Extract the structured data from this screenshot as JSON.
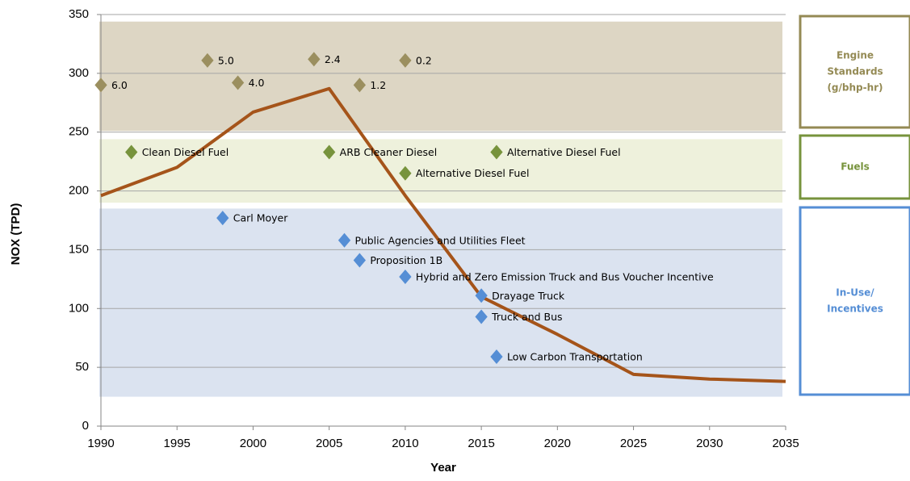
{
  "chart_data": {
    "type": "line",
    "xlabel": "Year",
    "ylabel": "NOX (TPD)",
    "xlim": [
      1990,
      2035
    ],
    "ylim": [
      0,
      350
    ],
    "xticks": [
      1990,
      1995,
      2000,
      2005,
      2010,
      2015,
      2020,
      2025,
      2030,
      2035
    ],
    "yticks": [
      0,
      50,
      100,
      150,
      200,
      250,
      300,
      350
    ],
    "grid": true,
    "x": [
      1990,
      1995,
      2000,
      2005,
      2010,
      2015,
      2020,
      2025,
      2030,
      2035
    ],
    "series": [
      {
        "color": "#a5541a",
        "values": [
          196,
          220,
          267,
          287,
          196,
          110,
          78,
          44,
          40,
          38
        ]
      }
    ],
    "groups": [
      {
        "name_lines": [
          "Engine",
          "Standards",
          "(g/bhp-hr)"
        ],
        "band": [
          251,
          344
        ],
        "band_color": "#ddd6c4",
        "color": "#9b8f5f",
        "box_color": "#948a54",
        "points": [
          {
            "x": 1990,
            "y": 290,
            "label": "6.0"
          },
          {
            "x": 1997,
            "y": 311,
            "label": "5.0"
          },
          {
            "x": 1999,
            "y": 292,
            "label": "4.0"
          },
          {
            "x": 2004,
            "y": 312,
            "label": "2.4"
          },
          {
            "x": 2007,
            "y": 290,
            "label": "1.2"
          },
          {
            "x": 2010,
            "y": 311,
            "label": "0.2"
          }
        ]
      },
      {
        "name_lines": [
          "Fuels"
        ],
        "band": [
          190,
          244
        ],
        "band_color": "#eef1dc",
        "color": "#77933c",
        "box_color": "#77933c",
        "points": [
          {
            "x": 1992,
            "y": 233,
            "label": "Clean Diesel Fuel"
          },
          {
            "x": 2005,
            "y": 233,
            "label": "ARB Cleaner Diesel"
          },
          {
            "x": 2010,
            "y": 215,
            "label": "Alternative Diesel Fuel"
          },
          {
            "x": 2016,
            "y": 233,
            "label": "Alternative Diesel Fuel"
          }
        ]
      },
      {
        "name_lines": [
          "In-Use/",
          "Incentives"
        ],
        "band": [
          25,
          185
        ],
        "band_color": "#dbe3f0",
        "color": "#558ed5",
        "box_color": "#558ed5",
        "points": [
          {
            "x": 1998,
            "y": 177,
            "label": "Carl Moyer"
          },
          {
            "x": 2006,
            "y": 158,
            "label": "Public Agencies and Utilities Fleet"
          },
          {
            "x": 2007,
            "y": 141,
            "label": "Proposition 1B"
          },
          {
            "x": 2010,
            "y": 127,
            "label": "Hybrid and Zero Emission Truck and Bus Voucher Incentive"
          },
          {
            "x": 2015,
            "y": 111,
            "label": "Drayage Truck"
          },
          {
            "x": 2015,
            "y": 93,
            "label": "Truck and Bus"
          },
          {
            "x": 2016,
            "y": 59,
            "label": "Low Carbon Transportation"
          }
        ]
      }
    ]
  }
}
